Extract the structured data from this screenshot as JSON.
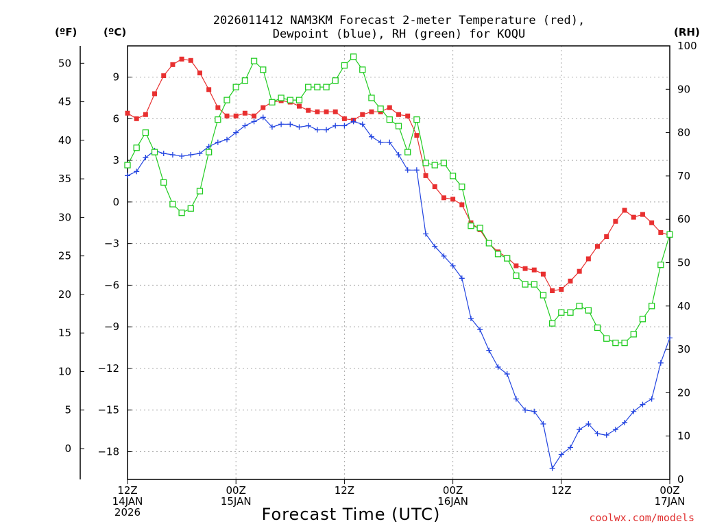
{
  "chart_data": {
    "type": "line",
    "title_line1": "2026011412 NAM3KM Forecast 2-meter Temperature (red),",
    "title_line2": "Dewpoint (blue), RH (green) for KOQU",
    "xlabel": "Forecast Time (UTC)",
    "credit": "coolwx.com/models",
    "unit_labels": {
      "fahrenheit": "(ºF)",
      "celsius": "(ºC)",
      "rh": "(RH)"
    },
    "x_range_hours": [
      0,
      60
    ],
    "x_ticks": [
      {
        "h": 0,
        "line1": "12Z",
        "line2": "14JAN",
        "line3": "2026"
      },
      {
        "h": 12,
        "line1": "00Z",
        "line2": "15JAN",
        "line3": ""
      },
      {
        "h": 24,
        "line1": "12Z",
        "line2": "",
        "line3": ""
      },
      {
        "h": 36,
        "line1": "00Z",
        "line2": "16JAN",
        "line3": ""
      },
      {
        "h": 48,
        "line1": "12Z",
        "line2": "",
        "line3": ""
      },
      {
        "h": 60,
        "line1": "00Z",
        "line2": "17JAN",
        "line3": ""
      }
    ],
    "celsius_range": [
      -20,
      11.25
    ],
    "celsius_ticks": [
      -18,
      -15,
      -12,
      -9,
      -6,
      -3,
      0,
      3,
      6,
      9
    ],
    "fahrenheit_ticks": [
      0,
      5,
      10,
      15,
      20,
      25,
      30,
      35,
      40,
      45,
      50
    ],
    "rh_range": [
      0,
      100
    ],
    "rh_ticks": [
      0,
      10,
      20,
      30,
      40,
      50,
      60,
      70,
      80,
      90,
      100
    ],
    "series": [
      {
        "name": "Temperature",
        "unit": "C",
        "color": "#e83030",
        "marker": "filled-square",
        "values": [
          6.4,
          6.0,
          6.3,
          7.8,
          9.1,
          9.9,
          10.3,
          10.2,
          9.3,
          8.1,
          6.8,
          6.2,
          6.2,
          6.4,
          6.2,
          6.8,
          7.2,
          7.3,
          7.2,
          6.9,
          6.6,
          6.5,
          6.5,
          6.5,
          6.0,
          5.9,
          6.3,
          6.5,
          6.5,
          6.8,
          6.3,
          6.2,
          4.8,
          1.9,
          1.1,
          0.3,
          0.2,
          -0.2,
          -1.5,
          -2.0,
          -3.0,
          -3.6,
          -4.0,
          -4.6,
          -4.8,
          -4.9,
          -5.2,
          -6.4,
          -6.3,
          -5.7,
          -5.0,
          -4.1,
          -3.2,
          -2.5,
          -1.4,
          -0.6,
          -1.1,
          -0.9,
          -1.5,
          -2.2,
          -2.4
        ]
      },
      {
        "name": "Dewpoint",
        "unit": "C",
        "color": "#2244e0",
        "marker": "plus",
        "values": [
          1.9,
          2.2,
          3.2,
          3.7,
          3.5,
          3.4,
          3.3,
          3.4,
          3.5,
          4.0,
          4.3,
          4.5,
          5.0,
          5.5,
          5.8,
          6.1,
          5.4,
          5.6,
          5.6,
          5.4,
          5.5,
          5.2,
          5.2,
          5.5,
          5.5,
          5.8,
          5.6,
          4.7,
          4.3,
          4.3,
          3.4,
          2.3,
          2.3,
          -2.3,
          -3.2,
          -3.9,
          -4.6,
          -5.5,
          -8.4,
          -9.2,
          -10.7,
          -11.9,
          -12.4,
          -14.2,
          -15.0,
          -15.1,
          -16.0,
          -19.2,
          -18.2,
          -17.7,
          -16.4,
          -16.0,
          -16.7,
          -16.8,
          -16.4,
          -15.9,
          -15.1,
          -14.6,
          -14.2,
          -11.6,
          -9.8
        ]
      },
      {
        "name": "Relative Humidity",
        "unit": "%",
        "color": "#22cc22",
        "marker": "open-square",
        "values": [
          72.5,
          76.5,
          80.0,
          75.5,
          68.5,
          63.5,
          61.5,
          62.5,
          66.5,
          75.5,
          83.0,
          87.5,
          90.5,
          92.0,
          96.5,
          94.5,
          87.0,
          88.0,
          87.5,
          87.5,
          90.5,
          90.5,
          90.5,
          92.0,
          95.5,
          97.5,
          94.5,
          88.0,
          85.5,
          83.0,
          81.5,
          75.5,
          83.0,
          73.0,
          72.5,
          73.0,
          70.0,
          67.5,
          58.5,
          58.0,
          54.5,
          52.0,
          51.0,
          47.0,
          45.0,
          45.0,
          42.5,
          36.0,
          38.5,
          38.5,
          40.0,
          39.0,
          35.0,
          32.5,
          31.5,
          31.5,
          33.5,
          37.0,
          40.0,
          49.5,
          56.5
        ]
      }
    ]
  }
}
